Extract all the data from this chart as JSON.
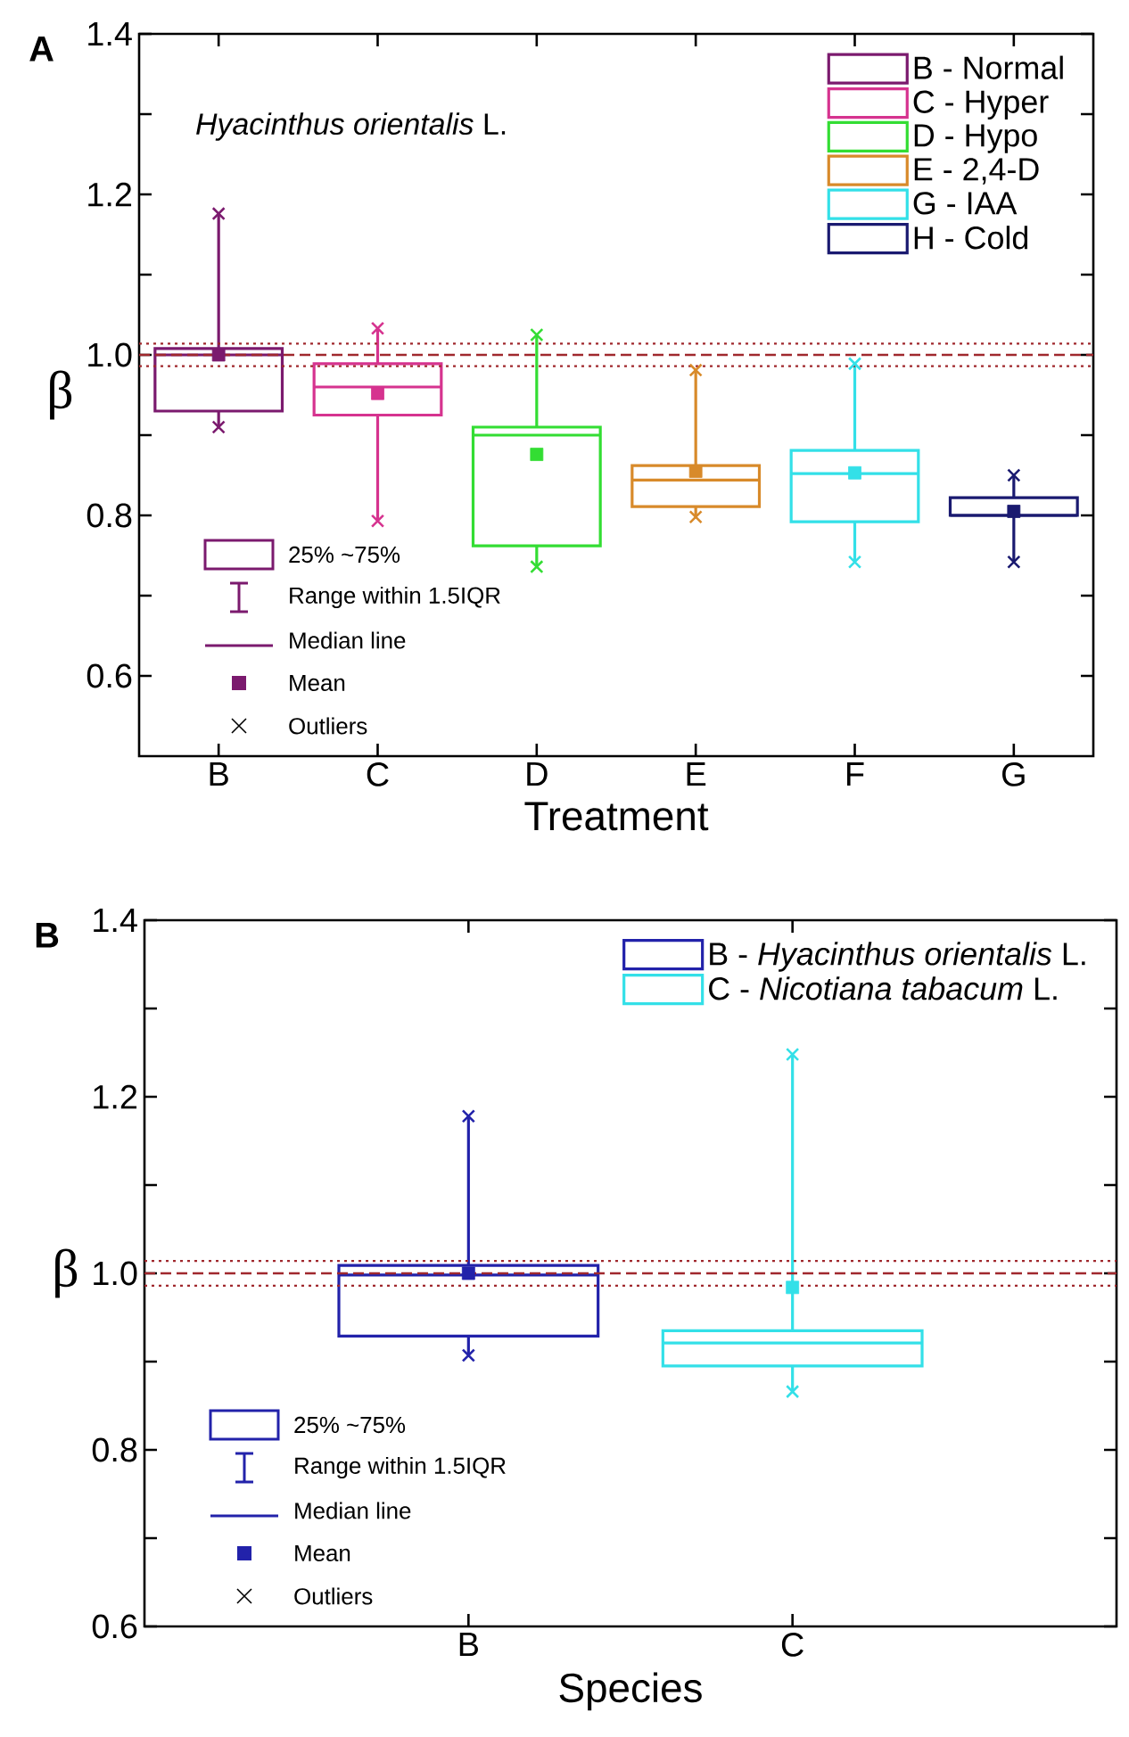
{
  "chart_data": [
    {
      "type": "box",
      "title": "A",
      "xlabel": "Treatment",
      "ylabel": "β",
      "categories": [
        "B",
        "C",
        "D",
        "E",
        "F",
        "G"
      ],
      "ylim": [
        0.5,
        1.4
      ],
      "yticks": [
        {
          "value": 0.6,
          "label": "0.6"
        },
        {
          "value": 0.7,
          "label": null
        },
        {
          "value": 0.8,
          "label": "0.8"
        },
        {
          "value": 0.9,
          "label": null
        },
        {
          "value": 1.0,
          "label": "1.0"
        },
        {
          "value": 1.1,
          "label": null
        },
        {
          "value": 1.2,
          "label": "1.2"
        },
        {
          "value": 1.3,
          "label": null
        },
        {
          "value": 1.4,
          "label": "1.4"
        }
      ],
      "legend": "top right",
      "series": [
        {
          "name": "B - Normal",
          "color": "#7b1a6e",
          "boxes": [
            {
              "low": 0.91,
              "q1": 0.93,
              "median": 1.0,
              "q3": 1.008,
              "high": 1.176,
              "mean": 1.0,
              "outliers": [
                0.91,
                1.176
              ]
            },
            null,
            null,
            null,
            null,
            null
          ]
        },
        {
          "name": "C - Hyper",
          "color": "#d6338f",
          "boxes": [
            null,
            {
              "low": 0.793,
              "q1": 0.925,
              "median": 0.96,
              "q3": 0.989,
              "high": 1.033,
              "mean": 0.952,
              "outliers": [
                0.793,
                1.033
              ]
            },
            null,
            null,
            null,
            null
          ]
        },
        {
          "name": "D - Hypo",
          "color": "#33dd33",
          "boxes": [
            null,
            null,
            {
              "low": 0.736,
              "q1": 0.762,
              "median": 0.9,
              "q3": 0.91,
              "high": 1.025,
              "mean": 0.876,
              "outliers": [
                0.736,
                1.025
              ]
            },
            null,
            null,
            null
          ]
        },
        {
          "name": "E - 2,4-D",
          "color": "#d88a2a",
          "boxes": [
            null,
            null,
            null,
            {
              "low": 0.798,
              "q1": 0.811,
              "median": 0.844,
              "q3": 0.862,
              "high": 0.981,
              "mean": 0.855,
              "outliers": [
                0.798,
                0.981
              ]
            },
            null,
            null
          ]
        },
        {
          "name": "G - IAA",
          "color": "#33e0e8",
          "boxes": [
            null,
            null,
            null,
            null,
            {
              "low": 0.742,
              "q1": 0.792,
              "median": 0.852,
              "q3": 0.881,
              "high": 0.989,
              "mean": 0.853,
              "outliers": [
                0.742,
                0.989
              ]
            },
            null
          ]
        },
        {
          "name": "H - Cold",
          "color": "#1a1a70",
          "boxes": [
            null,
            null,
            null,
            null,
            null,
            {
              "low": 0.742,
              "q1": 0.8,
              "median": 0.8,
              "q3": 0.822,
              "high": 0.85,
              "mean": 0.805,
              "outliers": [
                0.742,
                0.85
              ]
            }
          ]
        }
      ],
      "ref_lines": [
        {
          "axis": "y",
          "value": 1.0,
          "color": "#a0282d",
          "line_style": "dashed"
        },
        {
          "axis": "y",
          "value": 1.014,
          "color": "#a0282d",
          "line_style": "dotted"
        },
        {
          "axis": "y",
          "value": 0.986,
          "color": "#a0282d",
          "line_style": "dotted"
        }
      ],
      "annotations": [
        "*Hyacinthus orientalis* L.",
        "25% ~75%",
        "Range within 1.5IQR",
        "Median line",
        "Mean",
        "Outliers"
      ]
    },
    {
      "type": "box",
      "title": "B",
      "xlabel": "Species",
      "ylabel": "β",
      "categories": [
        "B",
        "C"
      ],
      "ylim": [
        0.6,
        1.4
      ],
      "yticks": [
        {
          "value": 0.6,
          "label": "0.6"
        },
        {
          "value": 0.7,
          "label": null
        },
        {
          "value": 0.8,
          "label": "0.8"
        },
        {
          "value": 0.9,
          "label": null
        },
        {
          "value": 1.0,
          "label": "1.0"
        },
        {
          "value": 1.1,
          "label": null
        },
        {
          "value": 1.2,
          "label": "1.2"
        },
        {
          "value": 1.3,
          "label": null
        },
        {
          "value": 1.4,
          "label": "1.4"
        }
      ],
      "legend": "top right",
      "series": [
        {
          "name": "B - *Hyacinthus orientalis* L.",
          "color": "#2222aa",
          "boxes": [
            {
              "low": 0.907,
              "q1": 0.929,
              "median": 0.998,
              "q3": 1.009,
              "high": 1.178,
              "mean": 1.0,
              "outliers": [
                0.907,
                1.178
              ]
            },
            null
          ]
        },
        {
          "name": "C - *Nicotiana tabacum* L.",
          "color": "#33e0e8",
          "boxes": [
            null,
            {
              "low": 0.866,
              "q1": 0.895,
              "median": 0.921,
              "q3": 0.935,
              "high": 1.248,
              "mean": 0.984,
              "outliers": [
                0.866,
                1.248
              ]
            }
          ]
        }
      ],
      "ref_lines": [
        {
          "axis": "y",
          "value": 1.0,
          "color": "#a0282d",
          "line_style": "dashed"
        },
        {
          "axis": "y",
          "value": 1.014,
          "color": "#a0282d",
          "line_style": "dotted"
        },
        {
          "axis": "y",
          "value": 0.986,
          "color": "#a0282d",
          "line_style": "dotted"
        }
      ],
      "annotations": [
        "25% ~75%",
        "Range within 1.5IQR",
        "Median line",
        "Mean",
        "Outliers"
      ]
    }
  ]
}
